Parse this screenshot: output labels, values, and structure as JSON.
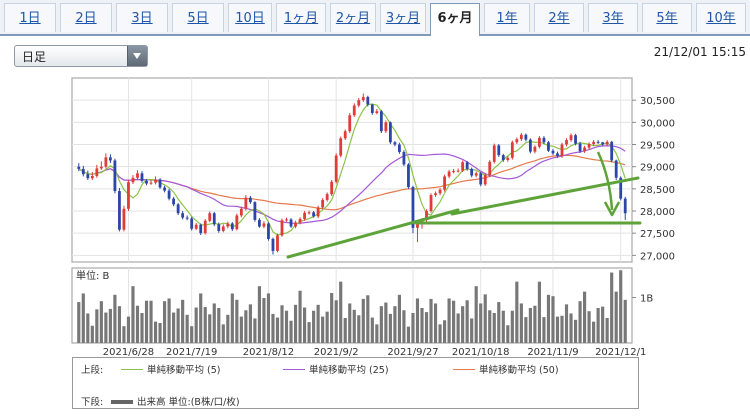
{
  "tabs": [
    {
      "label": "1日"
    },
    {
      "label": "2日"
    },
    {
      "label": "3日"
    },
    {
      "label": "5日"
    },
    {
      "label": "10日"
    },
    {
      "label": "1ヶ月"
    },
    {
      "label": "2ヶ月"
    },
    {
      "label": "3ヶ月"
    },
    {
      "label": "6ヶ月",
      "active": true
    },
    {
      "label": "1年"
    },
    {
      "label": "2年"
    },
    {
      "label": "3年"
    },
    {
      "label": "5年"
    },
    {
      "label": "10年"
    }
  ],
  "selector": {
    "value": "日足"
  },
  "timestamp": "21/12/01 15:15",
  "chart_data": {
    "type": "candlestick",
    "price_axis": {
      "range": [
        26850,
        31000
      ],
      "ticks": [
        27000,
        27500,
        28000,
        28500,
        29000,
        29500,
        30000,
        30500
      ],
      "tick_labels": [
        "27,000",
        "27,500",
        "28,000",
        "28,500",
        "29,000",
        "29,500",
        "30,000",
        "30,500"
      ]
    },
    "x_labels": [
      "2021/6/28",
      "2021/7/19",
      "2021/8/12",
      "2021/9/2",
      "2021/9/27",
      "2021/10/18",
      "2021/11/9",
      "2021/12/1"
    ],
    "x_label_index": [
      11,
      25,
      42,
      57,
      74,
      89,
      105,
      120
    ],
    "volume_axis": {
      "unit_label": "単位: B",
      "tick_label": "1B",
      "range": [
        0,
        1.65
      ]
    },
    "close": [
      28950,
      28830,
      28740,
      28790,
      28960,
      29000,
      29210,
      29140,
      28450,
      27580,
      28050,
      28650,
      28750,
      28850,
      28680,
      28620,
      28640,
      28710,
      28530,
      28460,
      28280,
      28150,
      27950,
      27850,
      27830,
      27600,
      27690,
      27500,
      27780,
      27950,
      27700,
      27550,
      27650,
      27720,
      27590,
      27900,
      28050,
      28300,
      28200,
      27800,
      27650,
      27720,
      27370,
      27100,
      27450,
      27790,
      27810,
      27650,
      27740,
      27820,
      27960,
      27970,
      27880,
      28080,
      28250,
      28380,
      28660,
      29250,
      29640,
      29800,
      30160,
      30380,
      30500,
      30570,
      30400,
      30210,
      30250,
      29800,
      30000,
      29550,
      29500,
      29330,
      29050,
      28540,
      27620,
      27760,
      27800,
      28000,
      28360,
      28400,
      28480,
      28780,
      28890,
      28900,
      28910,
      29100,
      28950,
      28800,
      28850,
      28600,
      28810,
      29110,
      29480,
      29260,
      29150,
      29200,
      29550,
      29620,
      29720,
      29610,
      29340,
      29450,
      29650,
      29550,
      29360,
      29300,
      29240,
      29500,
      29600,
      29710,
      29520,
      29350,
      29430,
      29510,
      29560,
      29550,
      29500,
      29560,
      29140,
      28750,
      28280,
      27950
    ],
    "open": [
      29000,
      28950,
      28830,
      28740,
      28790,
      28960,
      29000,
      29210,
      29140,
      28450,
      27580,
      28050,
      28650,
      28750,
      28850,
      28680,
      28620,
      28640,
      28710,
      28530,
      28460,
      28280,
      28150,
      27950,
      27850,
      27830,
      27600,
      27690,
      27500,
      27780,
      27950,
      27700,
      27550,
      27650,
      27720,
      27590,
      27900,
      28050,
      28300,
      28200,
      27800,
      27650,
      27720,
      27370,
      27100,
      27450,
      27790,
      27810,
      27650,
      27740,
      27820,
      27960,
      27970,
      27880,
      28080,
      28250,
      28380,
      28660,
      29250,
      29640,
      29800,
      30160,
      30380,
      30500,
      30570,
      30400,
      30210,
      30250,
      29800,
      30000,
      29550,
      29500,
      29330,
      29050,
      28540,
      27620,
      27760,
      27800,
      28000,
      28360,
      28400,
      28480,
      28780,
      28890,
      28900,
      28910,
      29100,
      28950,
      28800,
      28850,
      28600,
      28810,
      29110,
      29480,
      29260,
      29150,
      29200,
      29550,
      29620,
      29720,
      29610,
      29340,
      29450,
      29650,
      29550,
      29360,
      29300,
      29240,
      29500,
      29600,
      29710,
      29520,
      29350,
      29430,
      29510,
      29560,
      29550,
      29500,
      29560,
      29140,
      28750,
      28280
    ],
    "high": [
      29080,
      29020,
      28910,
      28880,
      29040,
      29120,
      29300,
      29280,
      29180,
      28520,
      28120,
      28700,
      28810,
      28920,
      28900,
      28720,
      28700,
      28780,
      28740,
      28570,
      28500,
      28320,
      28180,
      28000,
      27900,
      27870,
      27730,
      27720,
      27820,
      27990,
      27980,
      27740,
      27700,
      27760,
      27750,
      27940,
      28100,
      28360,
      28340,
      28220,
      27840,
      27770,
      27750,
      27400,
      27490,
      27830,
      27850,
      27840,
      27780,
      27860,
      28000,
      28010,
      28000,
      28120,
      28290,
      28420,
      28700,
      29300,
      29680,
      29840,
      30210,
      30430,
      30550,
      30650,
      30600,
      30420,
      30300,
      30280,
      30040,
      30020,
      29580,
      29540,
      29370,
      29080,
      28570,
      27790,
      27840,
      28040,
      28400,
      28440,
      28520,
      28820,
      28930,
      28950,
      28960,
      29140,
      29130,
      28980,
      28890,
      28880,
      28850,
      29150,
      29520,
      29510,
      29290,
      29240,
      29590,
      29660,
      29760,
      29750,
      29640,
      29480,
      29690,
      29690,
      29580,
      29400,
      29340,
      29540,
      29640,
      29750,
      29740,
      29560,
      29470,
      29550,
      29600,
      29600,
      29560,
      29600,
      29580,
      29160,
      28780,
      28320
    ],
    "low": [
      28900,
      28780,
      28700,
      28700,
      28750,
      28930,
      28960,
      29080,
      28400,
      27540,
      27540,
      28000,
      28610,
      28710,
      28640,
      28580,
      28590,
      28600,
      28500,
      28420,
      28240,
      28110,
      27910,
      27810,
      27790,
      27560,
      27570,
      27460,
      27470,
      27750,
      27660,
      27510,
      27520,
      27610,
      27550,
      27560,
      27860,
      28010,
      28160,
      27760,
      27620,
      27610,
      27330,
      27020,
      27070,
      27420,
      27760,
      27620,
      27610,
      27700,
      27780,
      27920,
      27850,
      27840,
      28040,
      28210,
      28340,
      28620,
      29210,
      29600,
      29760,
      30120,
      30340,
      30460,
      30360,
      30170,
      30180,
      29760,
      29760,
      29510,
      29460,
      29290,
      29010,
      28500,
      27500,
      27300,
      27600,
      27760,
      27960,
      28320,
      28360,
      28440,
      28740,
      28850,
      28870,
      28880,
      28910,
      28760,
      28760,
      28560,
      28570,
      28770,
      29070,
      29220,
      29110,
      29110,
      29160,
      29510,
      29580,
      29570,
      29300,
      29300,
      29410,
      29510,
      29330,
      29260,
      29200,
      29200,
      29460,
      29560,
      29480,
      29310,
      29310,
      29390,
      29470,
      29510,
      29460,
      29460,
      29100,
      28700,
      28240,
      27800
    ],
    "ma_legend": [
      {
        "label": "単純移動平均 (5)",
        "color": "#8bc34a"
      },
      {
        "label": "単純移動平均 (25)",
        "color": "#a45ad6"
      },
      {
        "label": "単純移動平均 (50)",
        "color": "#e67a4c"
      }
    ],
    "colors": {
      "up": "#e03a3a",
      "down": "#2c46a8",
      "volume": "#777777",
      "annotation": "#5ea33a"
    }
  },
  "legend": {
    "upper_label": "上段:",
    "lower_label": "下段:",
    "volume_label": "出来高 単位:(B株/口/枚)"
  }
}
